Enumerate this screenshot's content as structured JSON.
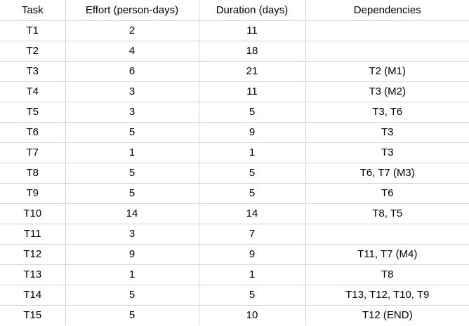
{
  "columns": [
    "Task",
    "Effort (person-days)",
    "Duration (days)",
    "Dependencies"
  ],
  "rows": [
    {
      "task": "T1",
      "effort": "2",
      "duration": "11",
      "deps": ""
    },
    {
      "task": "T2",
      "effort": "4",
      "duration": "18",
      "deps": ""
    },
    {
      "task": "T3",
      "effort": "6",
      "duration": "21",
      "deps": "T2 (M1)"
    },
    {
      "task": "T4",
      "effort": "3",
      "duration": "11",
      "deps": "T3 (M2)"
    },
    {
      "task": "T5",
      "effort": "3",
      "duration": "5",
      "deps": "T3, T6"
    },
    {
      "task": "T6",
      "effort": "5",
      "duration": "9",
      "deps": "T3"
    },
    {
      "task": "T7",
      "effort": "1",
      "duration": "1",
      "deps": "T3"
    },
    {
      "task": "T8",
      "effort": "5",
      "duration": "5",
      "deps": "T6, T7 (M3)"
    },
    {
      "task": "T9",
      "effort": "5",
      "duration": "5",
      "deps": "T6"
    },
    {
      "task": "T10",
      "effort": "14",
      "duration": "14",
      "deps": "T8, T5"
    },
    {
      "task": "T11",
      "effort": "3",
      "duration": "7",
      "deps": ""
    },
    {
      "task": "T12",
      "effort": "9",
      "duration": "9",
      "deps": "T11, T7 (M4)"
    },
    {
      "task": "T13",
      "effort": "1",
      "duration": "1",
      "deps": "T8"
    },
    {
      "task": "T14",
      "effort": "5",
      "duration": "5",
      "deps": "T13, T12, T10, T9"
    },
    {
      "task": "T15",
      "effort": "5",
      "duration": "10",
      "deps": "T12 (END)"
    }
  ]
}
